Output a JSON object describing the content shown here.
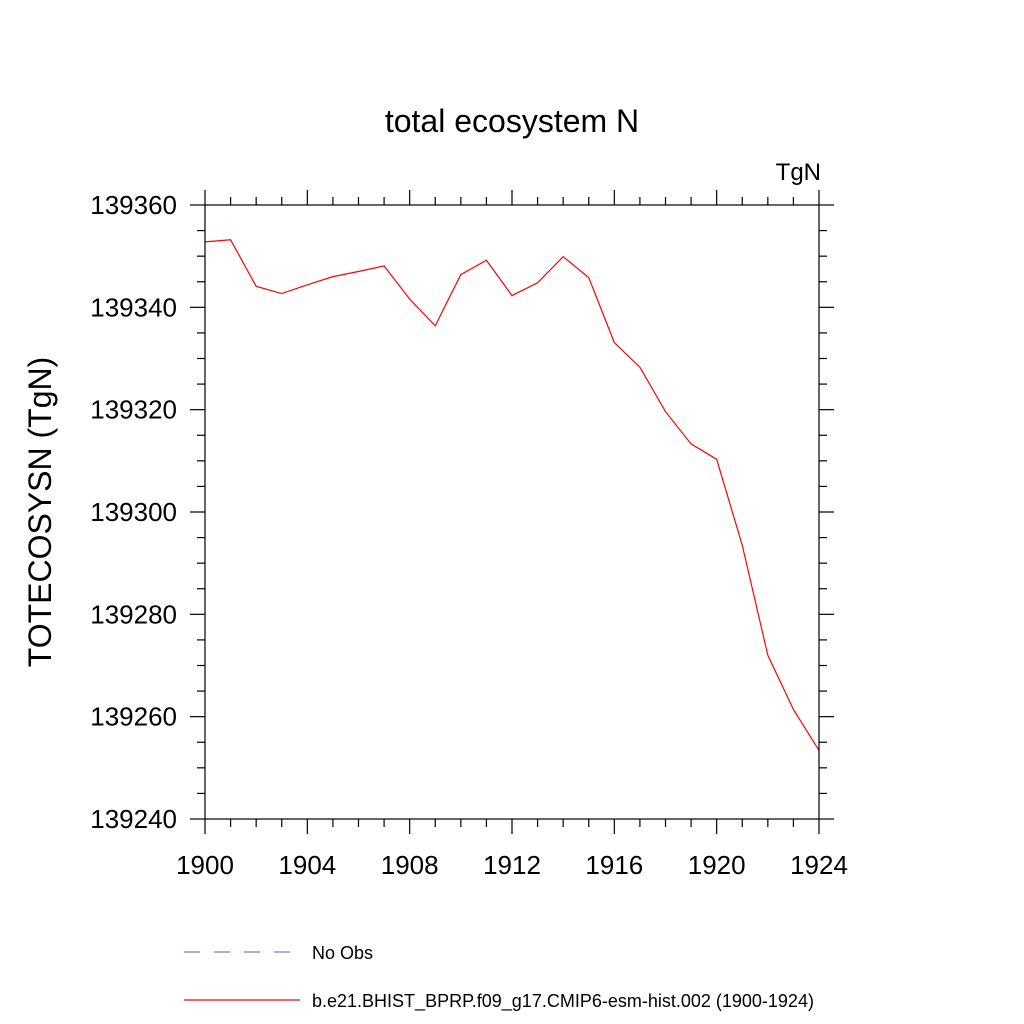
{
  "chart_data": {
    "type": "line",
    "title": "total ecosystem N",
    "units": "TgN",
    "xlabel": "",
    "ylabel": "TOTECOSYSN  (TgN)",
    "xlim": [
      1900,
      1924
    ],
    "ylim": [
      139240,
      139360
    ],
    "xticks": [
      1900,
      1904,
      1908,
      1912,
      1916,
      1920,
      1924
    ],
    "yticks": [
      139240,
      139260,
      139280,
      139300,
      139320,
      139340,
      139360
    ],
    "series": [
      {
        "name": "b.e21.BHIST_BPRP.f09_g17.CMIP6-esm-hist.002 (1900-1924)",
        "color": "#ff0000",
        "style": "solid",
        "x": [
          1900,
          1901,
          1902,
          1903,
          1904,
          1905,
          1906,
          1907,
          1908,
          1909,
          1910,
          1911,
          1912,
          1913,
          1914,
          1915,
          1916,
          1917,
          1918,
          1919,
          1920,
          1921,
          1922,
          1923,
          1924
        ],
        "values": [
          139352.8,
          139353.2,
          139344.1,
          139342.7,
          139344.4,
          139346.0,
          139347.0,
          139348.1,
          139341.6,
          139336.4,
          139346.4,
          139349.2,
          139342.3,
          139344.8,
          139349.9,
          139345.8,
          139333.1,
          139328.3,
          139319.6,
          139313.3,
          139310.3,
          139293.5,
          139272.0,
          139261.4,
          139253.4
        ]
      }
    ],
    "legend": [
      {
        "label": "No Obs",
        "color": "#7b7bd6",
        "style": "dashed"
      },
      {
        "label": "b.e21.BHIST_BPRP.f09_g17.CMIP6-esm-hist.002 (1900-1924)",
        "color": "#ff0000",
        "style": "solid"
      }
    ],
    "legend_position": "bottom"
  }
}
